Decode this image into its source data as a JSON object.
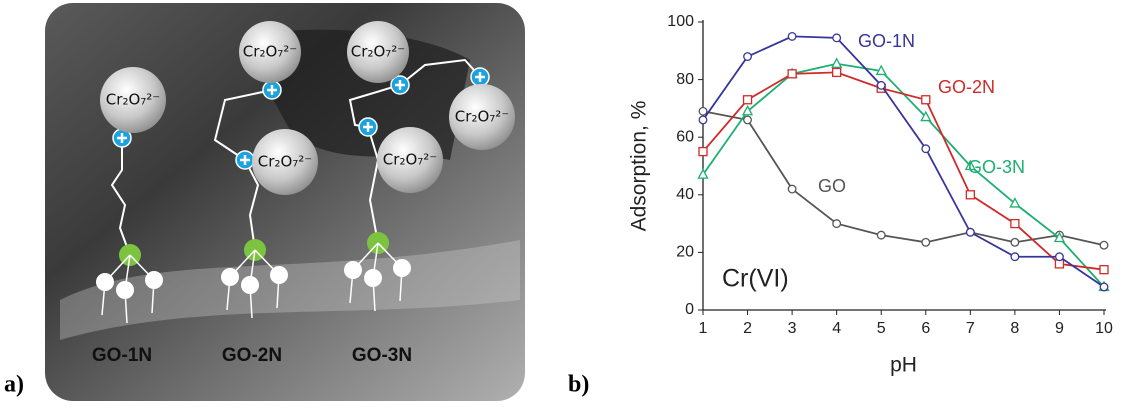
{
  "diagram": {
    "panel_label": "a)",
    "ions": [
      "Cr₂O₇²⁻",
      "Cr₂O₇²⁻",
      "Cr₂O₇²⁻",
      "Cr₂O₇²⁻",
      "Cr₂O₇²⁻",
      "Cr₂O₇²⁻"
    ],
    "groups": [
      "GO-1N",
      "GO-2N",
      "GO-3N"
    ]
  },
  "chart_data": {
    "type": "line",
    "panel_label": "b)",
    "annotation": "Cr(VI)",
    "x_label": "pH",
    "y_label": "Adsorption, %",
    "x": [
      1,
      2,
      3,
      4,
      5,
      6,
      7,
      8,
      9,
      10
    ],
    "xlim": [
      1,
      10
    ],
    "xticks": [
      1,
      2,
      3,
      4,
      5,
      6,
      7,
      8,
      9,
      10
    ],
    "ylim": [
      0,
      100
    ],
    "yticks": [
      0,
      20,
      40,
      60,
      80,
      100
    ],
    "grid": false,
    "series": [
      {
        "name": "GO-1N",
        "color": "#36369a",
        "marker": "circle",
        "values": [
          66,
          88,
          95,
          94.5,
          78,
          56,
          27,
          18.5,
          18.5,
          8
        ]
      },
      {
        "name": "GO-2N",
        "color": "#d02a2a",
        "marker": "square",
        "values": [
          55,
          73,
          82,
          82.5,
          77,
          73,
          40,
          30,
          16,
          14
        ]
      },
      {
        "name": "GO-3N",
        "color": "#1cb070",
        "marker": "triangle",
        "values": [
          47,
          69,
          82,
          85.5,
          83,
          67,
          50,
          37,
          25,
          8
        ]
      },
      {
        "name": "GO",
        "color": "#555555",
        "marker": "circle",
        "values": [
          69,
          66,
          42,
          30,
          26,
          23.5,
          27,
          23.5,
          26,
          22.5
        ]
      }
    ]
  }
}
